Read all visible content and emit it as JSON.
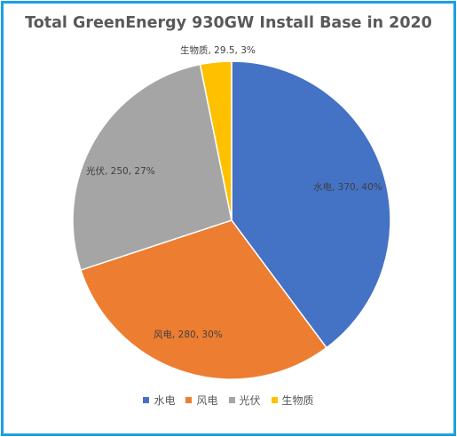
{
  "chart_data": {
    "type": "pie",
    "title": "Total GreenEnergy 930GW Install Base in 2020",
    "slices": [
      {
        "name": "水电",
        "value": 370,
        "percent": "40%",
        "label": "水电, 370, 40%",
        "color": "#4472c4"
      },
      {
        "name": "风电",
        "value": 280,
        "percent": "30%",
        "label": "风电, 280, 30%",
        "color": "#ed7d31"
      },
      {
        "name": "光伏",
        "value": 250,
        "percent": "27%",
        "label": "光伏, 250, 27%",
        "color": "#a5a5a5"
      },
      {
        "name": "生物质",
        "value": 29.5,
        "percent": "3%",
        "label": "生物质, 29.5, 3%",
        "color": "#ffc000"
      }
    ],
    "legend_position": "bottom"
  },
  "frame_color": "#1aa1e3"
}
